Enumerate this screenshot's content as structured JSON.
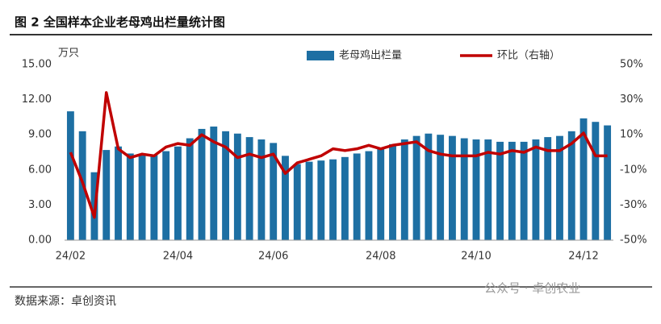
{
  "chart_data": {
    "type": "bar-line",
    "title": "图 2 全国样本企业老母鸡出栏量统计图",
    "y_label": "万只",
    "source": "数据来源：卓创资讯",
    "watermark": "公众号 · 卓创农业",
    "categories": [
      "24/02",
      null,
      null,
      null,
      null,
      null,
      null,
      null,
      null,
      "24/04",
      null,
      null,
      null,
      null,
      null,
      null,
      null,
      "24/06",
      null,
      null,
      null,
      null,
      null,
      null,
      null,
      null,
      "24/08",
      null,
      null,
      null,
      null,
      null,
      null,
      null,
      "24/10",
      null,
      null,
      null,
      null,
      null,
      null,
      null,
      null,
      "24/12",
      null,
      null
    ],
    "series": [
      {
        "name": "老母鸡出栏量",
        "color": "#1d6fa3",
        "kind": "bar",
        "values": [
          11.0,
          9.3,
          5.8,
          7.7,
          8.0,
          7.4,
          7.3,
          7.3,
          7.6,
          8.0,
          8.7,
          9.5,
          9.7,
          9.3,
          9.1,
          8.8,
          8.6,
          8.3,
          7.2,
          6.5,
          6.7,
          6.8,
          6.9,
          7.1,
          7.4,
          7.6,
          7.9,
          8.2,
          8.6,
          8.9,
          9.1,
          9.0,
          8.9,
          8.7,
          8.6,
          8.6,
          8.4,
          8.4,
          8.4,
          8.6,
          8.8,
          8.9,
          9.3,
          10.4,
          10.1,
          9.8
        ]
      },
      {
        "name": "环比（右轴）",
        "color": "#c00000",
        "kind": "line",
        "axis": "y2",
        "values": [
          0,
          -17,
          -37,
          34,
          2,
          -3,
          -1,
          -2,
          3,
          5,
          4,
          10,
          6,
          3,
          -3,
          -1,
          -3,
          -1,
          -12,
          -6,
          -4,
          -2,
          2,
          1,
          2,
          4,
          2,
          4,
          5,
          6,
          1,
          -1,
          -2,
          -2,
          -2,
          0,
          -1,
          1,
          0,
          3,
          1,
          1,
          5,
          11,
          -2,
          -2
        ]
      }
    ],
    "ylim": [
      0,
      15
    ],
    "yticks": [
      {
        "value": 0,
        "label": "0.00"
      },
      {
        "value": 3,
        "label": "3.00"
      },
      {
        "value": 6,
        "label": "6.00"
      },
      {
        "value": 9,
        "label": "9.00"
      },
      {
        "value": 12,
        "label": "12.00"
      },
      {
        "value": 15,
        "label": "15.00"
      }
    ],
    "y2lim": [
      -50,
      50
    ],
    "y2ticks": [
      {
        "value": -50,
        "label": "-50%"
      },
      {
        "value": -30,
        "label": "-30%"
      },
      {
        "value": -10,
        "label": "-10%"
      },
      {
        "value": 10,
        "label": "10%"
      },
      {
        "value": 30,
        "label": "30%"
      },
      {
        "value": 50,
        "label": "50%"
      }
    ],
    "grid": false
  }
}
